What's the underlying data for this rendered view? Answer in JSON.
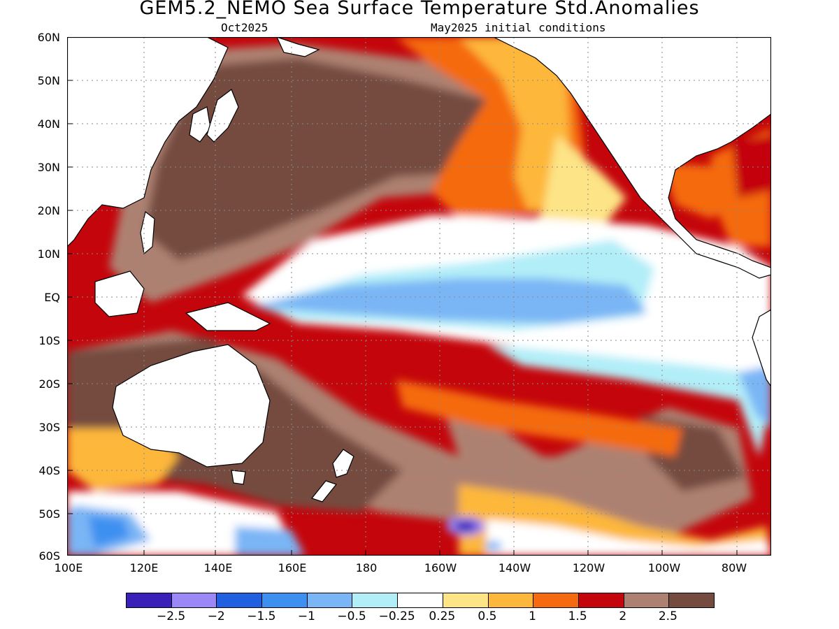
{
  "header": {
    "title": "GEM5.2_NEMO Sea Surface Temperature Std.Anomalies",
    "valid_month": "Oct2025",
    "initial_conditions": "May2025 initial conditions"
  },
  "axes": {
    "lat_labels": [
      "60N",
      "50N",
      "40N",
      "30N",
      "20N",
      "10N",
      "EQ",
      "10S",
      "20S",
      "30S",
      "40S",
      "50S",
      "60S"
    ],
    "lon_labels": [
      "100E",
      "120E",
      "140E",
      "160E",
      "180",
      "160W",
      "140W",
      "120W",
      "100W",
      "80W"
    ],
    "lat_range": [
      -60,
      60
    ],
    "lon_range": [
      100,
      290
    ],
    "grid": "dotted"
  },
  "legend": {
    "colors": [
      "#3a1fb8",
      "#9b87f5",
      "#1f5fe0",
      "#3d8ff0",
      "#7ab5f5",
      "#b2eef8",
      "#ffffff",
      "#fde486",
      "#fdb73a",
      "#f56a10",
      "#c4050b",
      "#ad8171",
      "#754b40"
    ],
    "labels": [
      "−2.5",
      "−2",
      "−1.5",
      "−1",
      "−0.5",
      "−0.25",
      "0.25",
      "0.5",
      "1",
      "1.5",
      "2",
      "2.5"
    ]
  },
  "colors": {
    "land": "#ffffff",
    "coastline": "#000000"
  }
}
